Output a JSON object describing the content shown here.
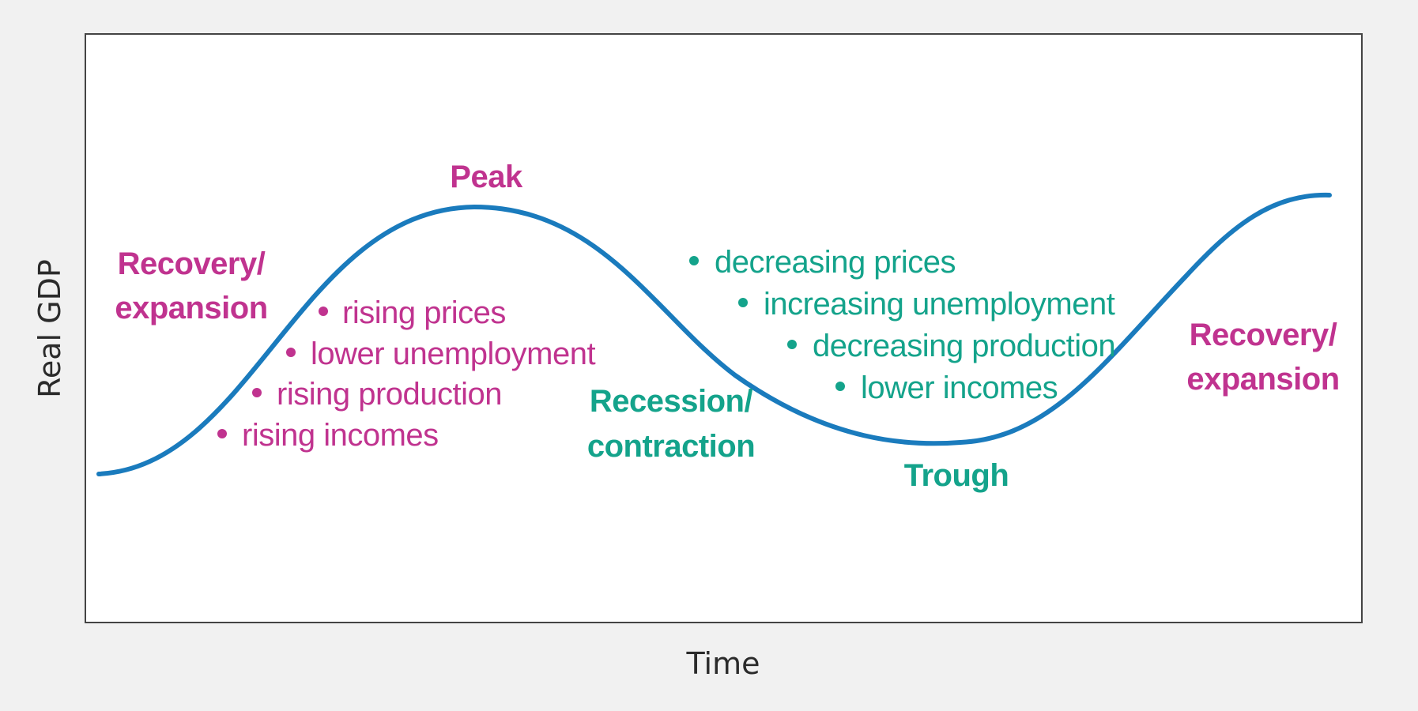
{
  "axes": {
    "y_label": "Real GDP",
    "x_label": "Time"
  },
  "colors": {
    "curve": "#1a7bbd",
    "expansion": "#c0338f",
    "recession": "#14a38b",
    "frame": "#444444",
    "plot_background": "#ffffff",
    "page_background": "#f1f1f1"
  },
  "phases": {
    "recovery_left": {
      "line1": "Recovery/",
      "line2": "expansion"
    },
    "peak": "Peak",
    "recession": {
      "line1": "Recession/",
      "line2": "contraction"
    },
    "trough": "Trough",
    "recovery_right": {
      "line1": "Recovery/",
      "line2": "expansion"
    }
  },
  "expansion_characteristics": [
    "rising prices",
    "lower unemployment",
    "rising production",
    "rising incomes"
  ],
  "recession_characteristics": [
    "decreasing prices",
    "increasing unemployment",
    "decreasing production",
    "lower incomes"
  ]
}
